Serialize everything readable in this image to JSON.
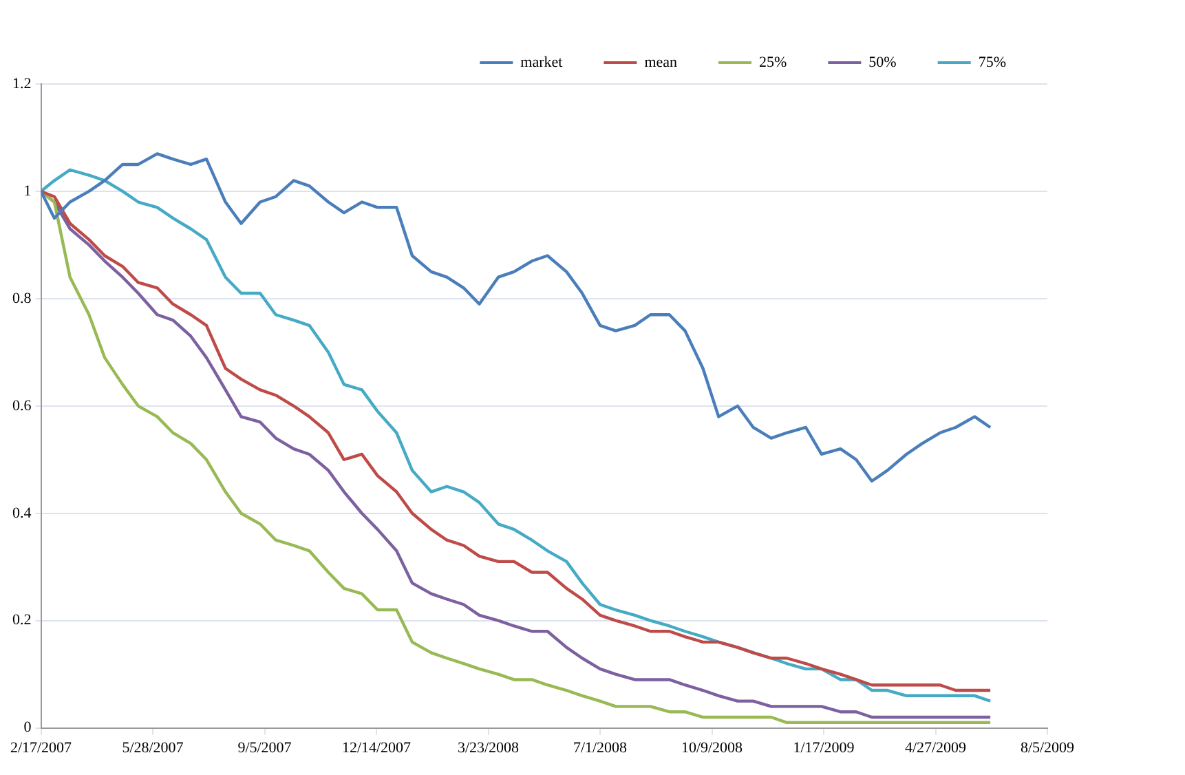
{
  "chart_data": {
    "type": "line",
    "x": [
      "2007-02-17",
      "2007-03-01",
      "2007-03-15",
      "2007-04-01",
      "2007-04-15",
      "2007-05-01",
      "2007-05-15",
      "2007-06-01",
      "2007-06-15",
      "2007-07-01",
      "2007-07-15",
      "2007-08-01",
      "2007-08-15",
      "2007-09-01",
      "2007-09-15",
      "2007-10-01",
      "2007-10-15",
      "2007-11-01",
      "2007-11-15",
      "2007-12-01",
      "2007-12-15",
      "2008-01-01",
      "2008-01-15",
      "2008-02-01",
      "2008-02-15",
      "2008-03-01",
      "2008-03-15",
      "2008-04-01",
      "2008-04-15",
      "2008-05-01",
      "2008-05-15",
      "2008-06-01",
      "2008-06-15",
      "2008-07-01",
      "2008-07-15",
      "2008-08-01",
      "2008-08-15",
      "2008-09-01",
      "2008-09-15",
      "2008-10-01",
      "2008-10-15",
      "2008-11-01",
      "2008-11-15",
      "2008-12-01",
      "2008-12-15",
      "2009-01-01",
      "2009-01-15",
      "2009-02-01",
      "2009-02-15",
      "2009-03-01",
      "2009-03-15",
      "2009-04-01",
      "2009-04-15",
      "2009-05-01",
      "2009-05-15",
      "2009-06-01",
      "2009-06-15"
    ],
    "series": [
      {
        "name": "market",
        "color": "#4a7ebb",
        "values": [
          1.0,
          0.95,
          0.98,
          1.0,
          1.02,
          1.05,
          1.05,
          1.07,
          1.06,
          1.05,
          1.06,
          0.98,
          0.94,
          0.98,
          0.99,
          1.02,
          1.01,
          0.98,
          0.96,
          0.98,
          0.97,
          0.97,
          0.88,
          0.85,
          0.84,
          0.82,
          0.79,
          0.84,
          0.85,
          0.87,
          0.88,
          0.85,
          0.81,
          0.75,
          0.74,
          0.75,
          0.77,
          0.77,
          0.74,
          0.67,
          0.58,
          0.6,
          0.56,
          0.54,
          0.55,
          0.56,
          0.51,
          0.52,
          0.5,
          0.46,
          0.48,
          0.51,
          0.53,
          0.55,
          0.56,
          0.58,
          0.56
        ]
      },
      {
        "name": "mean",
        "color": "#be4b48",
        "values": [
          1.0,
          0.99,
          0.94,
          0.91,
          0.88,
          0.86,
          0.83,
          0.82,
          0.79,
          0.77,
          0.75,
          0.67,
          0.65,
          0.63,
          0.62,
          0.6,
          0.58,
          0.55,
          0.5,
          0.51,
          0.47,
          0.44,
          0.4,
          0.37,
          0.35,
          0.34,
          0.32,
          0.31,
          0.31,
          0.29,
          0.29,
          0.26,
          0.24,
          0.21,
          0.2,
          0.19,
          0.18,
          0.18,
          0.17,
          0.16,
          0.16,
          0.15,
          0.14,
          0.13,
          0.13,
          0.12,
          0.11,
          0.1,
          0.09,
          0.08,
          0.08,
          0.08,
          0.08,
          0.08,
          0.07,
          0.07,
          0.07
        ]
      },
      {
        "name": "25%",
        "color": "#98b954",
        "values": [
          1.0,
          0.98,
          0.84,
          0.77,
          0.69,
          0.64,
          0.6,
          0.58,
          0.55,
          0.53,
          0.5,
          0.44,
          0.4,
          0.38,
          0.35,
          0.34,
          0.33,
          0.29,
          0.26,
          0.25,
          0.22,
          0.22,
          0.16,
          0.14,
          0.13,
          0.12,
          0.11,
          0.1,
          0.09,
          0.09,
          0.08,
          0.07,
          0.06,
          0.05,
          0.04,
          0.04,
          0.04,
          0.03,
          0.03,
          0.02,
          0.02,
          0.02,
          0.02,
          0.02,
          0.01,
          0.01,
          0.01,
          0.01,
          0.01,
          0.01,
          0.01,
          0.01,
          0.01,
          0.01,
          0.01,
          0.01,
          0.01
        ]
      },
      {
        "name": "50%",
        "color": "#7d60a0",
        "values": [
          1.0,
          0.98,
          0.93,
          0.9,
          0.87,
          0.84,
          0.81,
          0.77,
          0.76,
          0.73,
          0.69,
          0.63,
          0.58,
          0.57,
          0.54,
          0.52,
          0.51,
          0.48,
          0.44,
          0.4,
          0.37,
          0.33,
          0.27,
          0.25,
          0.24,
          0.23,
          0.21,
          0.2,
          0.19,
          0.18,
          0.18,
          0.15,
          0.13,
          0.11,
          0.1,
          0.09,
          0.09,
          0.09,
          0.08,
          0.07,
          0.06,
          0.05,
          0.05,
          0.04,
          0.04,
          0.04,
          0.04,
          0.03,
          0.03,
          0.02,
          0.02,
          0.02,
          0.02,
          0.02,
          0.02,
          0.02,
          0.02
        ]
      },
      {
        "name": "75%",
        "color": "#46aac5",
        "values": [
          1.0,
          1.02,
          1.04,
          1.03,
          1.02,
          1.0,
          0.98,
          0.97,
          0.95,
          0.93,
          0.91,
          0.84,
          0.81,
          0.81,
          0.77,
          0.76,
          0.75,
          0.7,
          0.64,
          0.63,
          0.59,
          0.55,
          0.48,
          0.44,
          0.45,
          0.44,
          0.42,
          0.38,
          0.37,
          0.35,
          0.33,
          0.31,
          0.27,
          0.23,
          0.22,
          0.21,
          0.2,
          0.19,
          0.18,
          0.17,
          0.16,
          0.15,
          0.14,
          0.13,
          0.12,
          0.11,
          0.11,
          0.09,
          0.09,
          0.07,
          0.07,
          0.06,
          0.06,
          0.06,
          0.06,
          0.06,
          0.05
        ]
      }
    ],
    "xlim": [
      "2007-02-17",
      "2009-08-05"
    ],
    "xticks": [
      {
        "value": "2007-02-17",
        "label": "2/17/2007"
      },
      {
        "value": "2007-05-28",
        "label": "5/28/2007"
      },
      {
        "value": "2007-09-05",
        "label": "9/5/2007"
      },
      {
        "value": "2007-12-14",
        "label": "12/14/2007"
      },
      {
        "value": "2008-03-23",
        "label": "3/23/2008"
      },
      {
        "value": "2008-07-01",
        "label": "7/1/2008"
      },
      {
        "value": "2008-10-09",
        "label": "10/9/2008"
      },
      {
        "value": "2009-01-17",
        "label": "1/17/2009"
      },
      {
        "value": "2009-04-27",
        "label": "4/27/2009"
      },
      {
        "value": "2009-08-05",
        "label": "8/5/2009"
      }
    ],
    "ylim": [
      0,
      1.2
    ],
    "yticks": [
      0,
      0.2,
      0.4,
      0.6,
      0.8,
      1,
      1.2
    ],
    "grid": "y",
    "legend": "top right",
    "marker": "none",
    "line_style": "solid"
  }
}
